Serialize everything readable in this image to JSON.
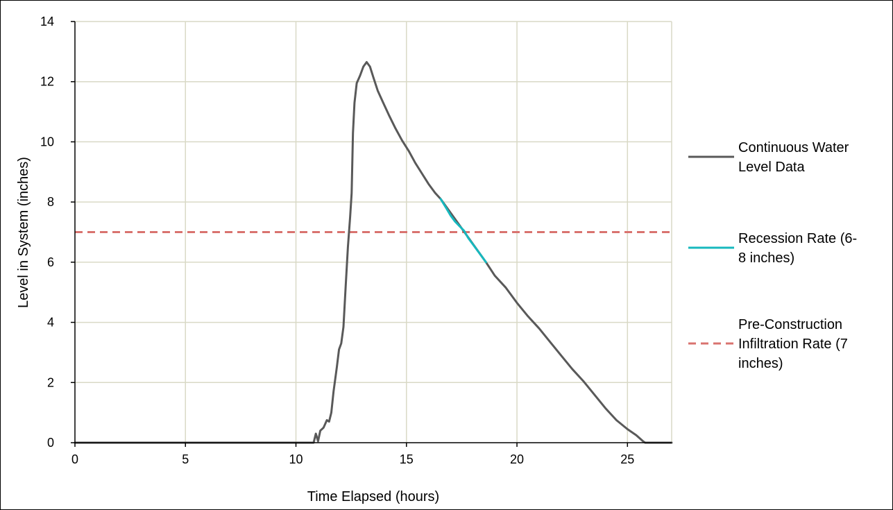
{
  "chart_data": {
    "type": "line",
    "xlabel": "Time Elapsed (hours)",
    "ylabel": "Level in System (inches)",
    "xlim": [
      0,
      27
    ],
    "ylim": [
      0,
      14
    ],
    "x_ticks": [
      0,
      5,
      10,
      15,
      20,
      25
    ],
    "y_ticks": [
      0,
      2,
      4,
      6,
      8,
      10,
      12,
      14
    ],
    "grid": true,
    "legend_position": "right",
    "series": [
      {
        "name": "Continuous Water Level Data",
        "legend_lines": [
          "Continuous Water",
          "Level Data"
        ],
        "style": "solid",
        "color": "#595959",
        "points": [
          [
            0,
            0
          ],
          [
            10.8,
            0
          ],
          [
            10.9,
            0.3
          ],
          [
            11.0,
            0.05
          ],
          [
            11.1,
            0.4
          ],
          [
            11.25,
            0.5
          ],
          [
            11.4,
            0.75
          ],
          [
            11.5,
            0.7
          ],
          [
            11.6,
            1.0
          ],
          [
            11.7,
            1.7
          ],
          [
            11.85,
            2.5
          ],
          [
            11.95,
            3.1
          ],
          [
            12.05,
            3.3
          ],
          [
            12.15,
            3.85
          ],
          [
            12.25,
            5.2
          ],
          [
            12.35,
            6.5
          ],
          [
            12.45,
            7.5
          ],
          [
            12.52,
            8.3
          ],
          [
            12.58,
            10.3
          ],
          [
            12.65,
            11.3
          ],
          [
            12.75,
            11.95
          ],
          [
            12.9,
            12.2
          ],
          [
            13.05,
            12.5
          ],
          [
            13.2,
            12.65
          ],
          [
            13.35,
            12.5
          ],
          [
            13.5,
            12.15
          ],
          [
            13.7,
            11.7
          ],
          [
            13.95,
            11.3
          ],
          [
            14.2,
            10.9
          ],
          [
            14.5,
            10.45
          ],
          [
            14.8,
            10.05
          ],
          [
            15.1,
            9.7
          ],
          [
            15.4,
            9.3
          ],
          [
            15.7,
            8.95
          ],
          [
            16.0,
            8.6
          ],
          [
            16.3,
            8.3
          ],
          [
            16.55,
            8.1
          ],
          [
            18.6,
            6.0
          ],
          [
            19.0,
            5.55
          ],
          [
            19.5,
            5.15
          ],
          [
            20.0,
            4.65
          ],
          [
            20.5,
            4.2
          ],
          [
            21.0,
            3.8
          ],
          [
            21.5,
            3.35
          ],
          [
            22.0,
            2.9
          ],
          [
            22.5,
            2.45
          ],
          [
            23.0,
            2.05
          ],
          [
            23.5,
            1.6
          ],
          [
            24.0,
            1.15
          ],
          [
            24.5,
            0.75
          ],
          [
            25.0,
            0.45
          ],
          [
            25.4,
            0.25
          ],
          [
            25.7,
            0.05
          ],
          [
            25.8,
            0
          ],
          [
            27,
            0
          ]
        ]
      },
      {
        "name": "Recession Rate (6-8 inches)",
        "legend_lines": [
          "Recession Rate (6-",
          "8 inches)"
        ],
        "style": "solid",
        "color": "#17B8BE",
        "points": [
          [
            16.55,
            8.1
          ],
          [
            16.8,
            7.8
          ],
          [
            17.0,
            7.55
          ],
          [
            17.2,
            7.35
          ],
          [
            17.4,
            7.2
          ],
          [
            17.6,
            7.05
          ],
          [
            17.8,
            6.8
          ],
          [
            18.0,
            6.6
          ],
          [
            18.2,
            6.4
          ],
          [
            18.4,
            6.2
          ],
          [
            18.6,
            6.0
          ]
        ]
      },
      {
        "name": "Pre-Construction Infiltration Rate (7 inches)",
        "legend_lines": [
          "Pre-Construction",
          "Infiltration Rate (7",
          "inches)"
        ],
        "style": "dashed",
        "color": "#D9736F",
        "points": [
          [
            0,
            7
          ],
          [
            27,
            7
          ]
        ]
      }
    ]
  },
  "colors": {
    "grid": "#D9D9C6",
    "axis": "#000000"
  }
}
